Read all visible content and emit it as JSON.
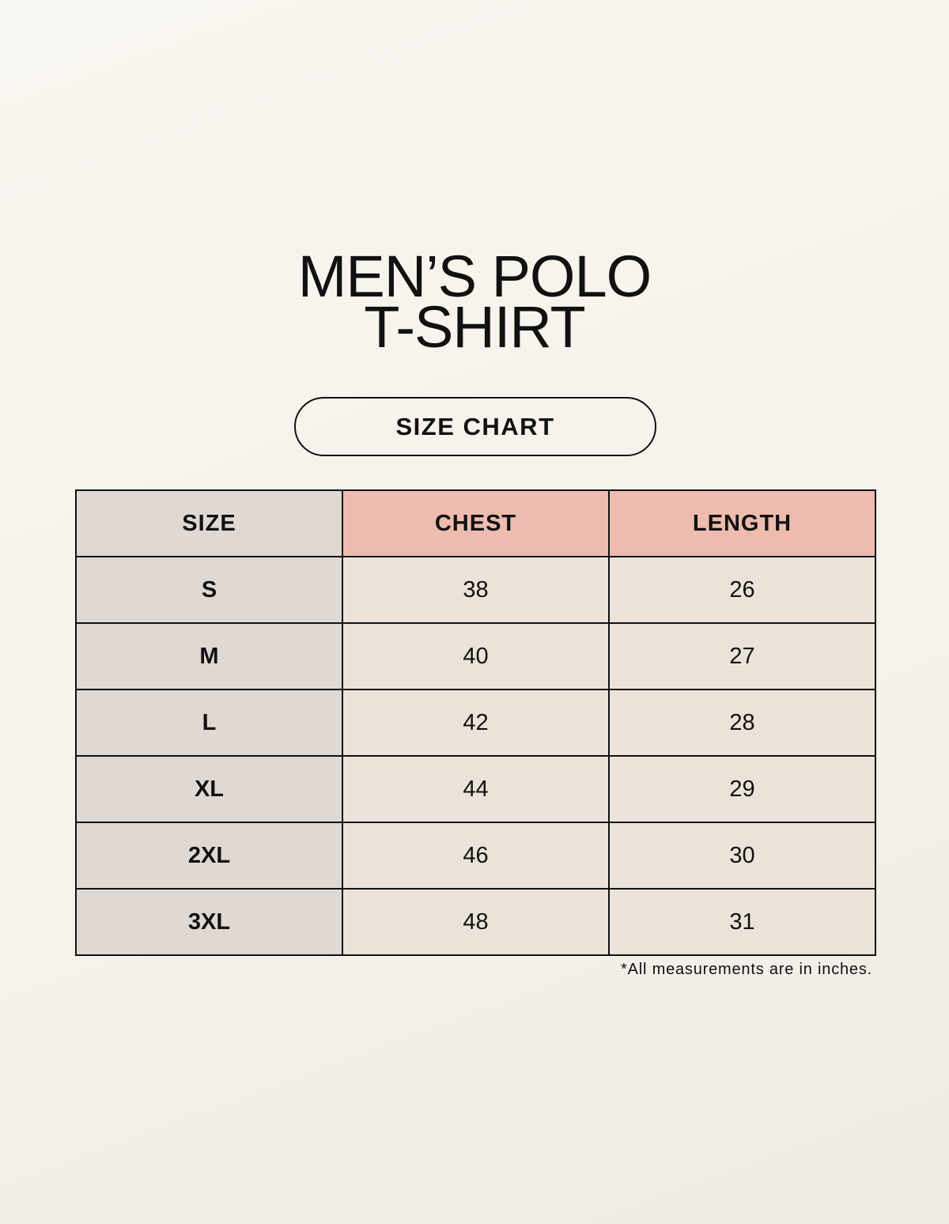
{
  "title": {
    "line1": "MEN’S POLO",
    "line2": "T-SHIRT"
  },
  "subtitle_button": "SIZE CHART",
  "table": {
    "headers": [
      "SIZE",
      "CHEST",
      "LENGTH"
    ],
    "rows": [
      [
        "S",
        "38",
        "26"
      ],
      [
        "M",
        "40",
        "27"
      ],
      [
        "L",
        "42",
        "28"
      ],
      [
        "XL",
        "44",
        "29"
      ],
      [
        "2XL",
        "46",
        "30"
      ],
      [
        "3XL",
        "48",
        "31"
      ]
    ]
  },
  "footnote": "*All measurements are in inches.",
  "colors": {
    "size_column": "#e0d8d3",
    "header_accent": "#edbcae",
    "cells": "#ebe3d9"
  }
}
